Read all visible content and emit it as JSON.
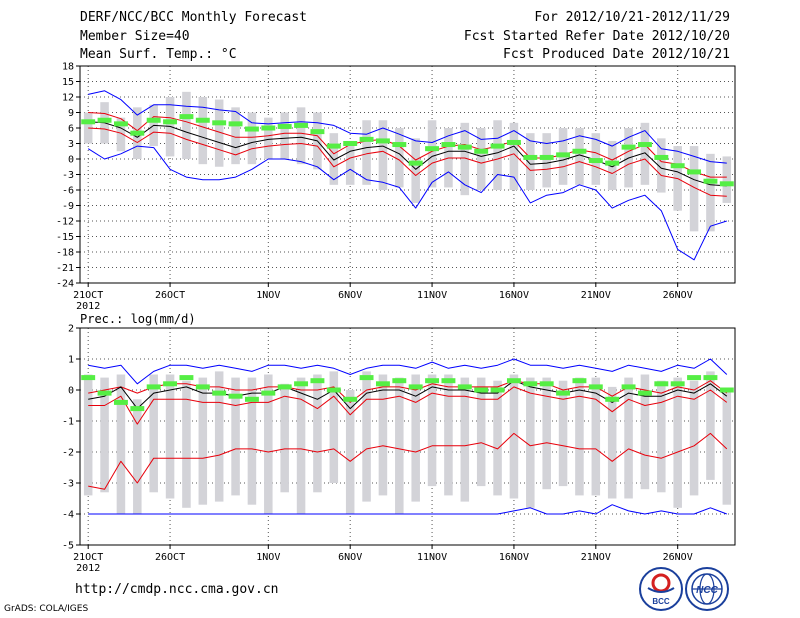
{
  "header": {
    "title": "DERF/NCC/BCC Monthly Forecast",
    "member_size": "Member Size=40",
    "variable": "Mean Surf. Temp.: °C",
    "period": "For 2012/10/21-2012/11/29",
    "fcst_started": "Fcst Started Refer Date 2012/10/20",
    "fcst_produced": "Fcst Produced Date 2012/10/21"
  },
  "footer": {
    "url": "http://cmdp.ncc.cma.gov.cn",
    "credit": "GrADS: COLA/IGES",
    "logo_bcc_text": "BCC",
    "logo_ncc_text": "NCC"
  },
  "colors": {
    "mean_line": "#000000",
    "range_line": "#0000ff",
    "quantile_line": "#e8000b",
    "box": "#d3d3d8",
    "green_marker": "#55ee44",
    "grid": "#555555"
  },
  "chart_data": [
    {
      "type": "line",
      "title": "Mean Surf. Temp.: °C",
      "ylim": [
        -24,
        18
      ],
      "yticks": [
        -24,
        -21,
        -18,
        -15,
        -12,
        -9,
        -6,
        -3,
        0,
        3,
        6,
        9,
        12,
        15,
        18
      ],
      "ytick_labels": [
        "-24",
        "-21",
        "-18",
        "-15",
        "-12",
        "-9",
        "-6",
        "-3",
        "0",
        "3",
        "6",
        "9",
        "12",
        "15",
        "18"
      ],
      "x_days": 40,
      "x_ticks": [
        {
          "day": 1,
          "label": "21OCT",
          "sublabel": "2012"
        },
        {
          "day": 6,
          "label": "26OCT",
          "sublabel": ""
        },
        {
          "day": 12,
          "label": "1NOV",
          "sublabel": ""
        },
        {
          "day": 17,
          "label": "6NOV",
          "sublabel": ""
        },
        {
          "day": 22,
          "label": "11NOV",
          "sublabel": ""
        },
        {
          "day": 27,
          "label": "16NOV",
          "sublabel": ""
        },
        {
          "day": 32,
          "label": "21NOV",
          "sublabel": ""
        },
        {
          "day": 37,
          "label": "26NOV",
          "sublabel": ""
        }
      ],
      "series": [
        {
          "name": "ensemble-max",
          "values": [
            12.5,
            13.2,
            11.5,
            8.5,
            10.5,
            10.5,
            10.2,
            10,
            9.5,
            9.2,
            7,
            6.8,
            7,
            7.2,
            7,
            6.5,
            5,
            4.8,
            6,
            4.8,
            3.5,
            3.2,
            4.5,
            5.5,
            3.8,
            4,
            5.5,
            3.5,
            3,
            3.5,
            4.5,
            3.8,
            2.5,
            4.2,
            5.5,
            2,
            1.5,
            0.5,
            -0.5,
            -0.8
          ]
        },
        {
          "name": "ensemble-q90",
          "values": [
            9,
            8.8,
            7.8,
            5.5,
            8.2,
            8,
            7.2,
            6.2,
            5.2,
            4.2,
            4.2,
            4.5,
            5,
            5,
            4.5,
            1,
            2.8,
            3.5,
            3.8,
            2.5,
            -0.2,
            1.5,
            2.5,
            2.8,
            1.8,
            2.5,
            3.5,
            0.2,
            0.2,
            0.8,
            1.8,
            1.2,
            -0.2,
            1.5,
            2.8,
            -0.5,
            -1,
            -2.5,
            -3.5,
            -3.5
          ]
        },
        {
          "name": "ensemble-mean",
          "values": [
            7.2,
            7,
            6,
            4.2,
            6.5,
            6.3,
            5.2,
            4.2,
            3.2,
            2.2,
            3.2,
            3.8,
            4,
            4.2,
            3.5,
            -0.2,
            1.5,
            2.2,
            2.5,
            1,
            -2,
            0.5,
            1.5,
            1.5,
            0.5,
            1.2,
            2.5,
            -1,
            -0.8,
            -0.2,
            0.8,
            -0.2,
            -1.5,
            0.2,
            1.2,
            -1.8,
            -2.5,
            -4,
            -5,
            -5.2
          ]
        },
        {
          "name": "ensemble-q10",
          "values": [
            6,
            5.8,
            5,
            3.2,
            5.2,
            5,
            3.8,
            2.8,
            1.8,
            0.8,
            2,
            2.5,
            2.8,
            3,
            2.5,
            -1.5,
            0.2,
            1,
            1.5,
            -0.2,
            -3.2,
            -0.8,
            0.2,
            0.2,
            -0.8,
            0,
            1,
            -2.2,
            -2,
            -1.5,
            -0.5,
            -1.5,
            -2.8,
            -1,
            0,
            -3.2,
            -3.8,
            -5.5,
            -7,
            -7.2
          ]
        },
        {
          "name": "ensemble-min",
          "values": [
            2,
            0,
            1,
            2.5,
            2.2,
            -2,
            -3.5,
            -4,
            -4,
            -3.5,
            -2,
            0,
            0,
            -0.5,
            -1.5,
            -4,
            -2,
            -4,
            -4.5,
            -5.5,
            -9.5,
            -4.5,
            -2.5,
            -5,
            -6.5,
            -3,
            -3.5,
            -8.5,
            -7,
            -6.5,
            -5,
            -6,
            -9.5,
            -8,
            -7,
            -10,
            -17.5,
            -19.5,
            -13,
            -12
          ]
        },
        {
          "name": "green-markers",
          "values": [
            7.2,
            7.5,
            6.8,
            5,
            7.5,
            7.2,
            8.2,
            7.5,
            7,
            6.8,
            5.8,
            6,
            6.3,
            6.5,
            5.3,
            2.5,
            3,
            3.8,
            3.5,
            2.8,
            -0.8,
            2,
            2.8,
            2.3,
            1.5,
            2.5,
            3.2,
            0.3,
            0.3,
            0.8,
            1.5,
            -0.3,
            -0.8,
            2.3,
            2.8,
            0.3,
            -1.3,
            -2.5,
            -4.3,
            -4.8
          ]
        },
        {
          "name": "box-upper",
          "values": [
            9,
            11,
            8,
            10,
            10.5,
            12,
            13,
            12,
            11.5,
            10,
            9,
            8,
            9,
            10,
            9,
            5,
            3.5,
            7.5,
            7.5,
            6,
            4,
            7.5,
            6,
            7,
            6,
            7.5,
            7,
            5,
            5,
            6,
            6,
            5,
            3.5,
            6,
            7,
            4,
            2.5,
            2.5,
            1,
            0.5
          ]
        },
        {
          "name": "box-lower",
          "values": [
            3,
            3,
            1.5,
            0,
            2.5,
            0.5,
            0,
            -1,
            -1.5,
            -1,
            -1,
            0,
            0,
            -1,
            -2,
            -5,
            -5,
            -5,
            -6,
            -5.5,
            -8.5,
            -5.5,
            -5.5,
            -7,
            -6,
            -6,
            -6,
            -6,
            -5.5,
            -5,
            -5,
            -5,
            -6,
            -5.5,
            -5,
            -6.5,
            -10,
            -14,
            -14,
            -8.5
          ]
        }
      ]
    },
    {
      "type": "line",
      "title": "Prec.: log(mm/d)",
      "ylim": [
        -5,
        2
      ],
      "yticks": [
        -5,
        -4,
        -3,
        -2,
        -1,
        0,
        1,
        2
      ],
      "ytick_labels": [
        "-5",
        "-4",
        "-3",
        "-2",
        "-1",
        "0",
        "1",
        "2"
      ],
      "x_days": 40,
      "x_ticks": [
        {
          "day": 1,
          "label": "21OCT",
          "sublabel": "2012"
        },
        {
          "day": 6,
          "label": "26OCT",
          "sublabel": ""
        },
        {
          "day": 12,
          "label": "1NOV",
          "sublabel": ""
        },
        {
          "day": 17,
          "label": "6NOV",
          "sublabel": ""
        },
        {
          "day": 22,
          "label": "11NOV",
          "sublabel": ""
        },
        {
          "day": 27,
          "label": "16NOV",
          "sublabel": ""
        },
        {
          "day": 32,
          "label": "21NOV",
          "sublabel": ""
        },
        {
          "day": 37,
          "label": "26NOV",
          "sublabel": ""
        }
      ],
      "series": [
        {
          "name": "ensemble-max",
          "values": [
            0.8,
            0.7,
            0.8,
            0.2,
            0.6,
            0.8,
            0.8,
            0.7,
            0.8,
            0.7,
            0.6,
            0.8,
            0.8,
            0.7,
            0.8,
            0.7,
            0.5,
            0.7,
            0.8,
            0.8,
            0.7,
            0.9,
            0.7,
            0.8,
            0.7,
            0.8,
            1.0,
            0.8,
            0.8,
            0.7,
            0.8,
            0.7,
            0.6,
            0.8,
            0.7,
            0.6,
            0.8,
            0.7,
            1.0,
            0.5
          ]
        },
        {
          "name": "ensemble-q90",
          "values": [
            -0.1,
            0.0,
            0.1,
            -0.1,
            0.1,
            0.2,
            0.2,
            0.1,
            0.1,
            0.0,
            0.0,
            0.1,
            0.1,
            0.0,
            0.0,
            0.1,
            -0.4,
            0.0,
            0.1,
            0.1,
            0.0,
            0.2,
            0.1,
            0.1,
            0.1,
            0.1,
            0.3,
            0.2,
            0.2,
            0.0,
            0.1,
            0.1,
            -0.2,
            0.1,
            0.0,
            -0.1,
            0.1,
            0.0,
            0.3,
            -0.1
          ]
        },
        {
          "name": "ensemble-mean",
          "values": [
            -0.3,
            -0.2,
            0.1,
            -0.6,
            -0.1,
            0.0,
            0.1,
            -0.1,
            -0.1,
            -0.2,
            -0.1,
            -0.1,
            0.1,
            -0.1,
            -0.3,
            0.0,
            -0.6,
            -0.1,
            0.0,
            0.0,
            -0.2,
            0.1,
            0.0,
            0.0,
            -0.1,
            -0.1,
            0.3,
            0.1,
            0.0,
            -0.1,
            0.0,
            -0.1,
            -0.4,
            -0.1,
            -0.2,
            -0.2,
            0.0,
            -0.1,
            0.2,
            -0.2
          ]
        },
        {
          "name": "ensemble-q10",
          "values": [
            -0.5,
            -0.5,
            -0.2,
            -1.1,
            -0.3,
            -0.3,
            -0.3,
            -0.4,
            -0.4,
            -0.5,
            -0.4,
            -0.4,
            -0.2,
            -0.3,
            -0.6,
            -0.2,
            -0.8,
            -0.3,
            -0.3,
            -0.2,
            -0.4,
            -0.1,
            -0.2,
            -0.2,
            -0.3,
            -0.3,
            0.1,
            -0.1,
            -0.2,
            -0.3,
            -0.2,
            -0.3,
            -0.7,
            -0.3,
            -0.5,
            -0.4,
            -0.2,
            -0.3,
            0.0,
            -0.4
          ]
        },
        {
          "name": "ensemble-q25",
          "values": [
            -3.1,
            -3.2,
            -2.3,
            -3.0,
            -2.2,
            -2.2,
            -2.2,
            -2.2,
            -2.1,
            -1.9,
            -1.9,
            -2.0,
            -1.9,
            -1.9,
            -2.0,
            -1.9,
            -2.3,
            -1.9,
            -1.8,
            -1.9,
            -2.0,
            -1.8,
            -1.8,
            -1.8,
            -1.7,
            -1.9,
            -1.4,
            -1.8,
            -1.7,
            -1.8,
            -1.9,
            -1.9,
            -2.3,
            -1.9,
            -2.1,
            -2.2,
            -2.0,
            -1.8,
            -1.4,
            -1.9
          ]
        },
        {
          "name": "ensemble-min",
          "values": [
            -4,
            -4,
            -4,
            -4,
            -4,
            -4,
            -4,
            -4,
            -4,
            -4,
            -4,
            -4,
            -4,
            -4,
            -4,
            -4,
            -4,
            -4,
            -4,
            -4,
            -4,
            -4,
            -4,
            -4,
            -4,
            -4,
            -3.9,
            -3.8,
            -4,
            -4,
            -3.9,
            -4,
            -3.7,
            -3.9,
            -4,
            -3.9,
            -4,
            -4,
            -3.8,
            -4
          ]
        },
        {
          "name": "green-markers",
          "values": [
            0.4,
            -0.1,
            -0.4,
            -0.6,
            0.1,
            0.2,
            0.4,
            0.1,
            -0.1,
            -0.2,
            -0.3,
            -0.1,
            0.1,
            0.2,
            0.3,
            0.0,
            -0.3,
            0.4,
            0.2,
            0.3,
            0.1,
            0.3,
            0.3,
            0.1,
            0.0,
            0.0,
            0.3,
            0.2,
            0.2,
            -0.1,
            0.3,
            0.1,
            -0.3,
            0.1,
            -0.1,
            0.2,
            0.2,
            0.4,
            0.4,
            0.0
          ]
        },
        {
          "name": "box-upper",
          "values": [
            0.5,
            0.4,
            0.5,
            -0.3,
            0.5,
            0.5,
            0.3,
            0.4,
            0.6,
            0.4,
            0.4,
            0.5,
            0.2,
            0.4,
            0.5,
            0.6,
            0.0,
            0.6,
            0.5,
            0.4,
            0.5,
            0.5,
            0.5,
            0.4,
            0.4,
            0.3,
            0.5,
            0.4,
            0.4,
            0.3,
            0.4,
            0.4,
            0.1,
            0.4,
            0.5,
            0.3,
            0.4,
            0.3,
            0.6,
            0.0
          ]
        },
        {
          "name": "box-lower",
          "values": [
            -3.4,
            -3.3,
            -4.0,
            -4.0,
            -3.3,
            -3.5,
            -3.8,
            -3.7,
            -3.6,
            -3.4,
            -3.7,
            -4.0,
            -3.3,
            -4.0,
            -3.3,
            -3.0,
            -4.0,
            -3.6,
            -3.4,
            -4.0,
            -3.6,
            -3.1,
            -3.4,
            -3.6,
            -3.1,
            -3.4,
            -3.5,
            -3.8,
            -3.2,
            -3.1,
            -3.4,
            -3.4,
            -3.5,
            -3.5,
            -3.2,
            -3.3,
            -3.8,
            -3.4,
            -2.9,
            -3.7
          ]
        }
      ]
    }
  ]
}
